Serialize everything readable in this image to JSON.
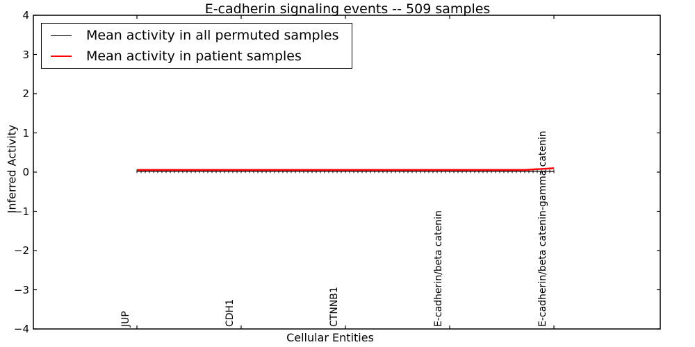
{
  "chart_data": {
    "type": "line",
    "title": "E-cadherin signaling events -- 509 samples",
    "xlabel": "Cellular Entities",
    "ylabel": "Inferred Activity",
    "ylim": [
      -4,
      4
    ],
    "xgrid": false,
    "ygrid": false,
    "yticks": [
      4,
      3,
      2,
      1,
      0,
      -1,
      -2,
      -3,
      -4
    ],
    "ytick_labels": [
      "4",
      "3",
      "2",
      "1",
      "0",
      "−1",
      "−2",
      "−3",
      "−4"
    ],
    "x_tick_labels": [
      "JUP",
      "CDH1",
      "CTNNB1",
      "E-cadherin/beta catenin",
      "E-cadherin/beta catenin-gamma catenin"
    ],
    "n_points": 101,
    "labeled_indices": [
      0,
      25,
      50,
      75,
      100
    ],
    "series": [
      {
        "name": "Mean activity in all permuted samples",
        "color": "#000000",
        "marker": "plus",
        "baseline": 0.02,
        "end_value": 0.02,
        "ramp_start_index": 93,
        "values_at_labels": [
          0.02,
          0.02,
          0.02,
          0.02,
          0.02
        ]
      },
      {
        "name": "Mean activity in patient samples",
        "color": "#ff0000",
        "marker": "none",
        "baseline": 0.055,
        "end_value": 0.1,
        "ramp_start_index": 93,
        "values_at_labels": [
          0.055,
          0.055,
          0.055,
          0.055,
          0.1
        ]
      }
    ],
    "legend": {
      "position": "upper left",
      "entries": [
        {
          "label": "Mean activity in all permuted samples",
          "color": "#000000"
        },
        {
          "label": "Mean activity in patient samples",
          "color": "#ff0000"
        }
      ]
    }
  }
}
